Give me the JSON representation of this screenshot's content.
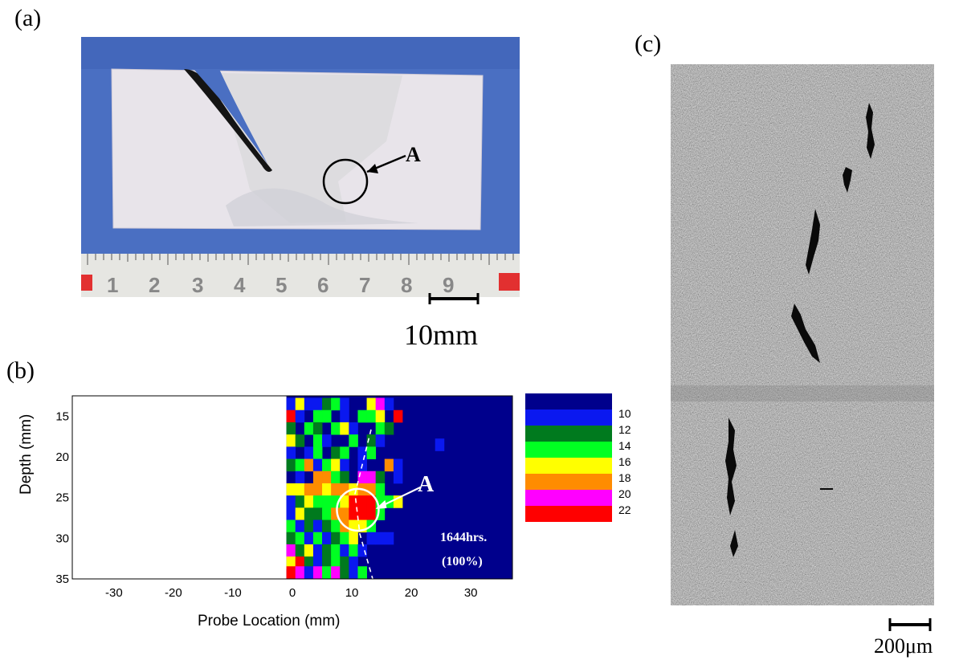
{
  "panel_a": {
    "label": "(a)",
    "marker": "A",
    "ruler_digits": [
      "1",
      "2",
      "3",
      "4",
      "5",
      "6",
      "7",
      "8",
      "9"
    ],
    "scale_label": "10mm",
    "colors": {
      "background": "#4a6fc2",
      "specimen": "#e8e4ea",
      "crack": "#141414"
    }
  },
  "panel_b": {
    "label": "(b)",
    "marker": "A",
    "annotation_line1": "1644hrs.",
    "annotation_line2": "(100%)",
    "legend": [
      {
        "color": "#00008c",
        "label": "10"
      },
      {
        "color": "#0a18f0",
        "label": "12"
      },
      {
        "color": "#007a1e",
        "label": "14"
      },
      {
        "color": "#00ff22",
        "label": "16"
      },
      {
        "color": "#ffff00",
        "label": "18"
      },
      {
        "color": "#ff8c00",
        "label": "20"
      },
      {
        "color": "#ff00ff",
        "label": ""
      },
      {
        "color": "#ff0000",
        "label": "22"
      }
    ]
  },
  "panel_c": {
    "label": "(c)",
    "scale_label": "200μm",
    "colors": {
      "micrograph": "#9a9a9a",
      "cracks": "#0a0a0a"
    }
  },
  "chart_data": {
    "type": "heatmap",
    "xlabel": "Probe Location (mm)",
    "ylabel": "Depth (mm)",
    "xlim": [
      -37,
      37
    ],
    "ylim": [
      35,
      12.5
    ],
    "xticks": [
      -30,
      -20,
      -10,
      0,
      10,
      20,
      30
    ],
    "yticks": [
      15,
      20,
      25,
      30,
      35
    ],
    "background_level": "10",
    "scan_start_x": -1,
    "cell_size": 1.5,
    "cells": [
      {
        "x": -1,
        "y": 13.5,
        "c": "#0a18f0"
      },
      {
        "x": 0.5,
        "y": 13.5,
        "c": "#ffff00"
      },
      {
        "x": 2,
        "y": 13.5,
        "c": "#0a18f0"
      },
      {
        "x": 3.5,
        "y": 13.5,
        "c": "#0a18f0"
      },
      {
        "x": 5,
        "y": 13.5,
        "c": "#007a1e"
      },
      {
        "x": 6.5,
        "y": 13.5,
        "c": "#00ff22"
      },
      {
        "x": 8,
        "y": 13.5,
        "c": "#0a18f0"
      },
      {
        "x": 12.5,
        "y": 13.5,
        "c": "#ffff00"
      },
      {
        "x": 14,
        "y": 13.5,
        "c": "#ff00ff"
      },
      {
        "x": 15.5,
        "y": 13.5,
        "c": "#0a18f0"
      },
      {
        "x": -1,
        "y": 15,
        "c": "#ff0000"
      },
      {
        "x": 0.5,
        "y": 15,
        "c": "#0a18f0"
      },
      {
        "x": 3.5,
        "y": 15,
        "c": "#00ff22"
      },
      {
        "x": 5,
        "y": 15,
        "c": "#00ff22"
      },
      {
        "x": 8,
        "y": 15,
        "c": "#0a18f0"
      },
      {
        "x": 11,
        "y": 15,
        "c": "#00ff22"
      },
      {
        "x": 12.5,
        "y": 15,
        "c": "#00ff22"
      },
      {
        "x": 14,
        "y": 15,
        "c": "#ffff00"
      },
      {
        "x": 17,
        "y": 15,
        "c": "#ff0000"
      },
      {
        "x": -1,
        "y": 16.5,
        "c": "#007a1e"
      },
      {
        "x": 2,
        "y": 16.5,
        "c": "#00ff22"
      },
      {
        "x": 3.5,
        "y": 16.5,
        "c": "#007a1e"
      },
      {
        "x": 6.5,
        "y": 16.5,
        "c": "#00ff22"
      },
      {
        "x": 8,
        "y": 16.5,
        "c": "#ffff00"
      },
      {
        "x": 9.5,
        "y": 16.5,
        "c": "#0a18f0"
      },
      {
        "x": 14,
        "y": 16.5,
        "c": "#00ff22"
      },
      {
        "x": 15.5,
        "y": 16.5,
        "c": "#007a1e"
      },
      {
        "x": -1,
        "y": 18,
        "c": "#ffff00"
      },
      {
        "x": 0.5,
        "y": 18,
        "c": "#007a1e"
      },
      {
        "x": 3.5,
        "y": 18,
        "c": "#00ff22"
      },
      {
        "x": 5,
        "y": 18,
        "c": "#0a18f0"
      },
      {
        "x": 9.5,
        "y": 18,
        "c": "#00ff22"
      },
      {
        "x": 12.5,
        "y": 18,
        "c": "#007a1e"
      },
      {
        "x": 14,
        "y": 18,
        "c": "#0a18f0"
      },
      {
        "x": -1,
        "y": 19.5,
        "c": "#0a18f0"
      },
      {
        "x": 2,
        "y": 19.5,
        "c": "#0a18f0"
      },
      {
        "x": 3.5,
        "y": 19.5,
        "c": "#00ff22"
      },
      {
        "x": 6.5,
        "y": 19.5,
        "c": "#007a1e"
      },
      {
        "x": 8,
        "y": 19.5,
        "c": "#00ff22"
      },
      {
        "x": 11,
        "y": 19.5,
        "c": "#0a18f0"
      },
      {
        "x": 12.5,
        "y": 19.5,
        "c": "#00ff22"
      },
      {
        "x": -1,
        "y": 21,
        "c": "#007a1e"
      },
      {
        "x": 0.5,
        "y": 21,
        "c": "#00ff22"
      },
      {
        "x": 2,
        "y": 21,
        "c": "#ff8c00"
      },
      {
        "x": 3.5,
        "y": 21,
        "c": "#0a18f0"
      },
      {
        "x": 5,
        "y": 21,
        "c": "#00ff22"
      },
      {
        "x": 6.5,
        "y": 21,
        "c": "#ffff00"
      },
      {
        "x": 8,
        "y": 21,
        "c": "#0a18f0"
      },
      {
        "x": 11,
        "y": 21,
        "c": "#0a18f0"
      },
      {
        "x": 15.5,
        "y": 21,
        "c": "#ff8c00"
      },
      {
        "x": 17,
        "y": 21,
        "c": "#0a18f0"
      },
      {
        "x": 0.5,
        "y": 22.5,
        "c": "#0a18f0"
      },
      {
        "x": 3.5,
        "y": 22.5,
        "c": "#ff8c00"
      },
      {
        "x": 5,
        "y": 22.5,
        "c": "#ff8c00"
      },
      {
        "x": 6.5,
        "y": 22.5,
        "c": "#00ff22"
      },
      {
        "x": 8,
        "y": 22.5,
        "c": "#007a1e"
      },
      {
        "x": 11,
        "y": 22.5,
        "c": "#ff00ff"
      },
      {
        "x": 12.5,
        "y": 22.5,
        "c": "#ff00ff"
      },
      {
        "x": 14,
        "y": 22.5,
        "c": "#007a1e"
      },
      {
        "x": -1,
        "y": 24,
        "c": "#ffff00"
      },
      {
        "x": 0.5,
        "y": 24,
        "c": "#ffff00"
      },
      {
        "x": 2,
        "y": 24,
        "c": "#ff8c00"
      },
      {
        "x": 3.5,
        "y": 24,
        "c": "#ff8c00"
      },
      {
        "x": 5,
        "y": 24,
        "c": "#ffff00"
      },
      {
        "x": 6.5,
        "y": 24,
        "c": "#ff8c00"
      },
      {
        "x": 8,
        "y": 24,
        "c": "#ff8c00"
      },
      {
        "x": 9.5,
        "y": 24,
        "c": "#ffff00"
      },
      {
        "x": 11,
        "y": 24,
        "c": "#ff8c00"
      },
      {
        "x": 12.5,
        "y": 24,
        "c": "#ff8c00"
      },
      {
        "x": 14,
        "y": 24,
        "c": "#00ff22"
      },
      {
        "x": -1,
        "y": 25.5,
        "c": "#0a18f0"
      },
      {
        "x": 0.5,
        "y": 25.5,
        "c": "#007a1e"
      },
      {
        "x": 2,
        "y": 25.5,
        "c": "#ffff00"
      },
      {
        "x": 3.5,
        "y": 25.5,
        "c": "#00ff22"
      },
      {
        "x": 5,
        "y": 25.5,
        "c": "#00ff22"
      },
      {
        "x": 6.5,
        "y": 25.5,
        "c": "#00ff22"
      },
      {
        "x": 8,
        "y": 25.5,
        "c": "#ffff00"
      },
      {
        "x": 9.5,
        "y": 25.5,
        "c": "#ff0000"
      },
      {
        "x": 11,
        "y": 25.5,
        "c": "#ff0000"
      },
      {
        "x": 12.5,
        "y": 25.5,
        "c": "#ff0000"
      },
      {
        "x": 14,
        "y": 25.5,
        "c": "#00ff22"
      },
      {
        "x": 15.5,
        "y": 25.5,
        "c": "#00ff22"
      },
      {
        "x": 17,
        "y": 25.5,
        "c": "#ffff00"
      },
      {
        "x": -1,
        "y": 27,
        "c": "#0a18f0"
      },
      {
        "x": 0.5,
        "y": 27,
        "c": "#ffff00"
      },
      {
        "x": 2,
        "y": 27,
        "c": "#007a1e"
      },
      {
        "x": 3.5,
        "y": 27,
        "c": "#007a1e"
      },
      {
        "x": 5,
        "y": 27,
        "c": "#00ff22"
      },
      {
        "x": 6.5,
        "y": 27,
        "c": "#ff8c00"
      },
      {
        "x": 8,
        "y": 27,
        "c": "#ff8c00"
      },
      {
        "x": 9.5,
        "y": 27,
        "c": "#ff0000"
      },
      {
        "x": 11,
        "y": 27,
        "c": "#ff0000"
      },
      {
        "x": 12.5,
        "y": 27,
        "c": "#ff0000"
      },
      {
        "x": 14,
        "y": 27,
        "c": "#00ff22"
      },
      {
        "x": -1,
        "y": 28.5,
        "c": "#00ff22"
      },
      {
        "x": 0.5,
        "y": 28.5,
        "c": "#0a18f0"
      },
      {
        "x": 2,
        "y": 28.5,
        "c": "#007a1e"
      },
      {
        "x": 3.5,
        "y": 28.5,
        "c": "#0a18f0"
      },
      {
        "x": 5,
        "y": 28.5,
        "c": "#007a1e"
      },
      {
        "x": 6.5,
        "y": 28.5,
        "c": "#00ff22"
      },
      {
        "x": 8,
        "y": 28.5,
        "c": "#ff8c00"
      },
      {
        "x": 9.5,
        "y": 28.5,
        "c": "#ffff00"
      },
      {
        "x": 11,
        "y": 28.5,
        "c": "#ffff00"
      },
      {
        "x": 12.5,
        "y": 28.5,
        "c": "#00ff22"
      },
      {
        "x": -1,
        "y": 30,
        "c": "#007a1e"
      },
      {
        "x": 0.5,
        "y": 30,
        "c": "#00ff22"
      },
      {
        "x": 2,
        "y": 30,
        "c": "#0a18f0"
      },
      {
        "x": 3.5,
        "y": 30,
        "c": "#00ff22"
      },
      {
        "x": 5,
        "y": 30,
        "c": "#0a18f0"
      },
      {
        "x": 6.5,
        "y": 30,
        "c": "#007a1e"
      },
      {
        "x": 8,
        "y": 30,
        "c": "#00ff22"
      },
      {
        "x": 9.5,
        "y": 30,
        "c": "#ffff00"
      },
      {
        "x": 12.5,
        "y": 30,
        "c": "#0a18f0"
      },
      {
        "x": 14,
        "y": 30,
        "c": "#0a18f0"
      },
      {
        "x": 15.5,
        "y": 30,
        "c": "#0a18f0"
      },
      {
        "x": -1,
        "y": 31.5,
        "c": "#ff00ff"
      },
      {
        "x": 0.5,
        "y": 31.5,
        "c": "#007a1e"
      },
      {
        "x": 2,
        "y": 31.5,
        "c": "#ffff00"
      },
      {
        "x": 3.5,
        "y": 31.5,
        "c": "#0a18f0"
      },
      {
        "x": 5,
        "y": 31.5,
        "c": "#007a1e"
      },
      {
        "x": 6.5,
        "y": 31.5,
        "c": "#00ff22"
      },
      {
        "x": 8,
        "y": 31.5,
        "c": "#0a18f0"
      },
      {
        "x": 9.5,
        "y": 31.5,
        "c": "#00ff22"
      },
      {
        "x": 11,
        "y": 31.5,
        "c": "#0a18f0"
      },
      {
        "x": -1,
        "y": 33,
        "c": "#ffff00"
      },
      {
        "x": 0.5,
        "y": 33,
        "c": "#ff0000"
      },
      {
        "x": 2,
        "y": 33,
        "c": "#007a1e"
      },
      {
        "x": 3.5,
        "y": 33,
        "c": "#0a18f0"
      },
      {
        "x": 5,
        "y": 33,
        "c": "#007a1e"
      },
      {
        "x": 6.5,
        "y": 33,
        "c": "#00ff22"
      },
      {
        "x": 8,
        "y": 33,
        "c": "#007a1e"
      },
      {
        "x": 9.5,
        "y": 33,
        "c": "#0a18f0"
      },
      {
        "x": -1,
        "y": 34.2,
        "c": "#ff0000"
      },
      {
        "x": 0.5,
        "y": 34.2,
        "c": "#ff00ff"
      },
      {
        "x": 2,
        "y": 34.2,
        "c": "#0a18f0"
      },
      {
        "x": 3.5,
        "y": 34.2,
        "c": "#ff00ff"
      },
      {
        "x": 5,
        "y": 34.2,
        "c": "#00ff22"
      },
      {
        "x": 6.5,
        "y": 34.2,
        "c": "#ff00ff"
      },
      {
        "x": 8,
        "y": 34.2,
        "c": "#007a1e"
      },
      {
        "x": 9.5,
        "y": 34.2,
        "c": "#0a18f0"
      },
      {
        "x": 11,
        "y": 34.2,
        "c": "#00ff22"
      },
      {
        "x": 24,
        "y": 18.5,
        "c": "#0a18f0"
      },
      {
        "x": 17,
        "y": 22.5,
        "c": "#0a18f0"
      }
    ],
    "annotation": {
      "x": 11,
      "y": 26.5,
      "label": "A"
    }
  }
}
